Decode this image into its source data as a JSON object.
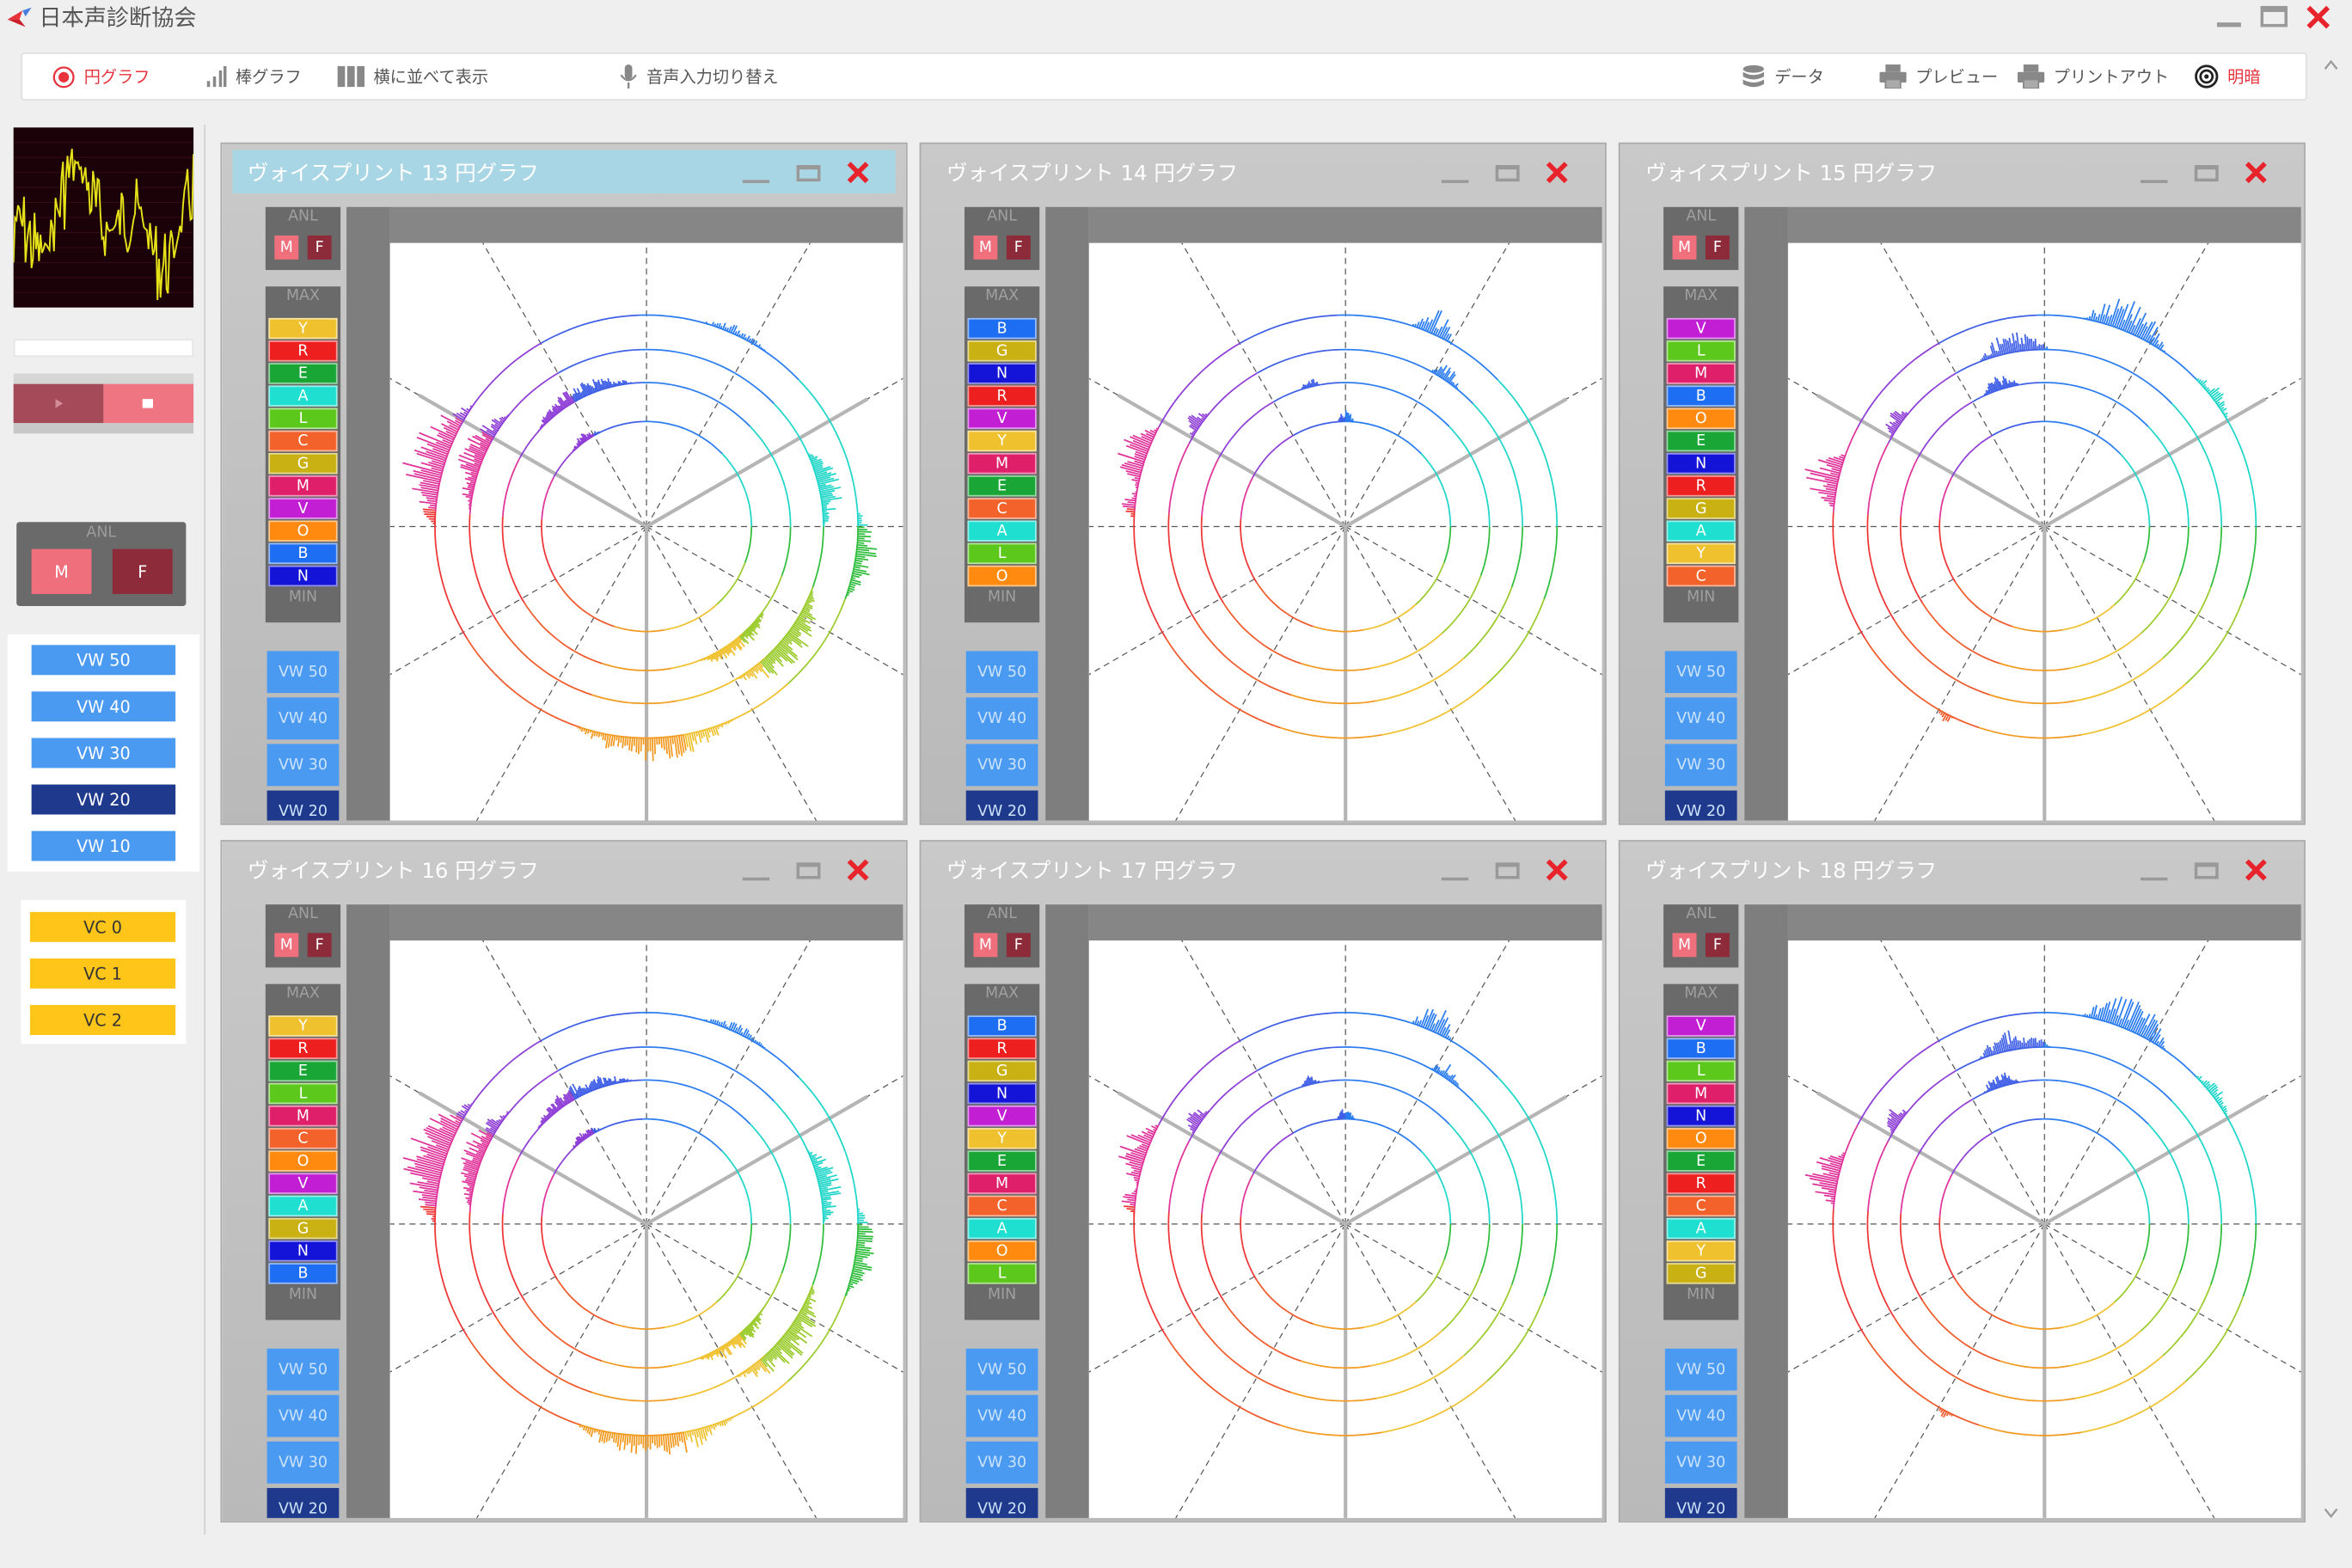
{
  "app": {
    "title": "日本声診断協会"
  },
  "toolbar": {
    "pie": "円グラフ",
    "bar": "棒グラフ",
    "tile": "横に並べて表示",
    "voice_input": "音声入力切り替え",
    "data": "データ",
    "preview": "プレビュー",
    "print": "プリントアウト",
    "brightness": "明暗"
  },
  "left": {
    "anl_label": "ANL",
    "m": "M",
    "f": "F",
    "vw_buttons": [
      "VW 50",
      "VW 40",
      "VW 30",
      "VW 20",
      "VW 10"
    ],
    "vw_selected": "VW 20",
    "vc_buttons": [
      "VC 0",
      "VC 1",
      "VC 2"
    ]
  },
  "colors": {
    "Y": "#f0c12f",
    "R": "#ee1f1f",
    "E": "#19a636",
    "A": "#1fe0d0",
    "L": "#5cc81c",
    "C": "#f2622a",
    "G": "#c9b114",
    "M": "#e01f6b",
    "V": "#c21fd4",
    "O": "#ff8a0f",
    "B": "#1e6ef3",
    "N": "#1414d8"
  },
  "windows": [
    {
      "title": "ヴォイスプリント 13 円グラフ",
      "active": true,
      "order": [
        "Y",
        "R",
        "E",
        "A",
        "L",
        "C",
        "G",
        "M",
        "V",
        "O",
        "B",
        "N"
      ]
    },
    {
      "title": "ヴォイスプリント 14 円グラフ",
      "active": false,
      "order": [
        "B",
        "G",
        "N",
        "R",
        "V",
        "Y",
        "M",
        "E",
        "C",
        "A",
        "L",
        "O"
      ]
    },
    {
      "title": "ヴォイスプリント 15 円グラフ",
      "active": false,
      "order": [
        "V",
        "L",
        "M",
        "B",
        "O",
        "E",
        "N",
        "R",
        "G",
        "A",
        "Y",
        "C"
      ]
    },
    {
      "title": "ヴォイスプリント 16 円グラフ",
      "active": false,
      "order": [
        "Y",
        "R",
        "E",
        "L",
        "M",
        "C",
        "O",
        "V",
        "A",
        "G",
        "N",
        "B"
      ]
    },
    {
      "title": "ヴォイスプリント 17 円グラフ",
      "active": false,
      "order": [
        "B",
        "R",
        "G",
        "N",
        "V",
        "Y",
        "E",
        "M",
        "C",
        "A",
        "O",
        "L"
      ]
    },
    {
      "title": "ヴォイスプリント 18 円グラフ",
      "active": false,
      "order": [
        "V",
        "B",
        "L",
        "M",
        "N",
        "O",
        "E",
        "R",
        "C",
        "A",
        "Y",
        "G"
      ]
    }
  ],
  "win_labels": {
    "anl": "ANL",
    "max": "MAX",
    "min": "MIN",
    "m": "M",
    "f": "F",
    "vw": [
      "VW 50",
      "VW 40",
      "VW 30",
      "VW 20"
    ]
  }
}
